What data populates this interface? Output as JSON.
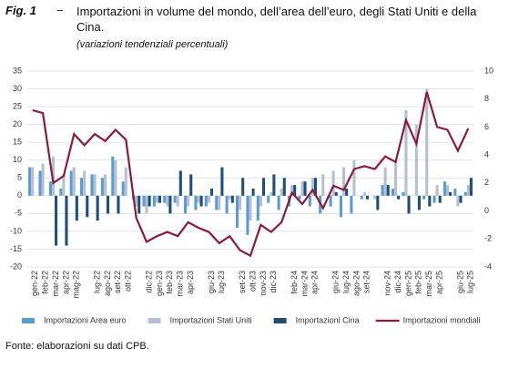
{
  "fig_label": "Fig. 1",
  "separator": "−",
  "chart_data": {
    "type": "bar-line",
    "title": "Importazioni in volume del mondo, dell’area dell’euro, degli Stati Uniti e della Cina.",
    "subtitle": "(variazioni tendenziali percentuali)",
    "categories": [
      "gen-22",
      "feb-22",
      "mar-22",
      "apr-22",
      "mag-22",
      null,
      "lug-22",
      "ago-22",
      "set-22",
      "ott-22",
      null,
      "dic-22",
      "gen-23",
      "feb-23",
      "mar-23",
      "apr-23",
      null,
      "giu-23",
      "lug-23",
      null,
      "set-23",
      "ott-23",
      "nov-23",
      "dic-23",
      null,
      "feb-24",
      "mar-24",
      "apr-24",
      null,
      "giu-24",
      "lug-24",
      "ago-24",
      "set-24",
      null,
      "nov-24",
      "dic-24",
      "gen-25",
      "feb-25",
      "mar-25",
      "apr-25",
      null,
      "giu-25",
      "lug-25"
    ],
    "series": [
      {
        "name": "Importazioni Area euro",
        "type": "bar",
        "color": "#5b9bd5",
        "values": [
          8,
          7,
          4,
          2,
          7,
          5,
          6,
          5,
          11,
          4,
          -1,
          -3,
          -3,
          -2,
          -2,
          -5,
          -4,
          -3,
          -4,
          -5,
          -9,
          -11,
          -7,
          -2,
          -4,
          -3,
          -1,
          -3,
          -5,
          -3,
          -6,
          -5,
          -1,
          0,
          3,
          2,
          1,
          0,
          -1,
          -2,
          4,
          2,
          1
        ]
      },
      {
        "name": "Importazioni Stati Uniti",
        "type": "bar",
        "color": "#b4c0d0",
        "values": [
          8,
          9,
          11,
          6,
          8,
          7,
          6,
          6,
          10,
          8,
          -3,
          -5,
          -2,
          -3,
          -3,
          -3,
          -2,
          -2,
          -4,
          -1,
          -4,
          -7,
          -3,
          1,
          2,
          3,
          4,
          5,
          6,
          7,
          8,
          10,
          1,
          -1,
          8,
          10,
          24,
          20,
          30,
          3,
          3,
          -3,
          3
        ]
      },
      {
        "name": "Importazioni Cina",
        "type": "bar",
        "color": "#1f4e79",
        "values": [
          0,
          0,
          -14,
          -14,
          -7,
          -6,
          -7,
          -5,
          -5,
          0,
          -5,
          -3,
          -2,
          -5,
          7,
          6,
          -3,
          2,
          8,
          -2,
          5,
          2,
          5,
          6,
          5,
          3,
          4,
          5,
          0,
          1,
          2,
          0,
          -1,
          -4,
          3,
          -1,
          -5,
          -4,
          -3,
          -2,
          1,
          -2,
          5
        ]
      },
      {
        "name": "Importazioni mondiali",
        "type": "line",
        "axis": "y2",
        "color": "#8b1a3c",
        "values": [
          7.2,
          7.0,
          2.0,
          2.5,
          5.5,
          4.7,
          5.5,
          5.0,
          5.8,
          5.1,
          -0.5,
          -2.2,
          -1.8,
          -1.5,
          -1.8,
          -0.8,
          -1.2,
          -1.5,
          -2.3,
          -1.8,
          -2.8,
          -3.2,
          -1.0,
          -1.5,
          -0.8,
          1.3,
          0.5,
          1.5,
          0.2,
          1.8,
          1.5,
          3.0,
          3.2,
          3.0,
          3.9,
          3.5,
          6.5,
          4.8,
          8.5,
          6.0,
          5.8,
          4.3,
          5.9
        ]
      }
    ],
    "ylim": [
      -20,
      35
    ],
    "yticks": [
      -20,
      -15,
      -10,
      -5,
      0,
      5,
      10,
      15,
      20,
      25,
      30,
      35
    ],
    "y2lim": [
      -4,
      10
    ],
    "y2ticks": [
      -4,
      -2,
      0,
      2,
      4,
      6,
      8,
      10
    ],
    "grid": true,
    "legend": "bottom",
    "source": "Fonte: elaborazioni su dati CPB."
  }
}
